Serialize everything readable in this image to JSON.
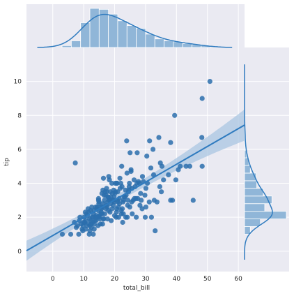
{
  "chart_data": {
    "type": "scatter",
    "style": "seaborn darkgrid jointplot with regression line, confidence band, marginal histograms and KDE",
    "xlabel": "total_bill",
    "ylabel": "tip",
    "xlim": [
      -8.5,
      62
    ],
    "ylim": [
      -1.2,
      12
    ],
    "x_ticks": [
      0,
      10,
      20,
      30,
      40,
      50,
      60
    ],
    "y_ticks": [
      0,
      2,
      4,
      6,
      8,
      10
    ],
    "grid": true,
    "colors": {
      "point": "#2b6fad",
      "line": "#2f7bbf",
      "band": "#a9c6e2",
      "hist": "#90b6d8",
      "background": "#eaeaf2",
      "grid": "#ffffff"
    },
    "regression": {
      "slope": 0.105,
      "intercept": 0.92
    },
    "series": [
      {
        "points": [
          [
            10.3,
            1.7
          ],
          [
            21.0,
            3.5
          ],
          [
            23.7,
            3.3
          ],
          [
            24.6,
            3.6
          ],
          [
            25.3,
            4.7
          ],
          [
            8.8,
            2.0
          ],
          [
            26.9,
            3.1
          ],
          [
            15.0,
            2.0
          ],
          [
            14.8,
            3.1
          ],
          [
            10.3,
            1.7
          ],
          [
            35.3,
            5.0
          ],
          [
            15.4,
            1.6
          ],
          [
            18.4,
            3.0
          ],
          [
            14.8,
            3.0
          ],
          [
            22.2,
            2.2
          ],
          [
            17.9,
            3.2
          ],
          [
            19.5,
            3.0
          ],
          [
            20.7,
            2.5
          ],
          [
            17.8,
            3.2
          ],
          [
            24.1,
            2.0
          ],
          [
            16.0,
            2.6
          ],
          [
            16.3,
            1.9
          ],
          [
            16.6,
            3.3
          ],
          [
            20.2,
            4.0
          ],
          [
            16.9,
            3.5
          ],
          [
            31.3,
            6.5
          ],
          [
            7.3,
            5.2
          ],
          [
            24.3,
            3.0
          ],
          [
            19.8,
            3.2
          ],
          [
            27.2,
            4.0
          ],
          [
            12.0,
            1.5
          ],
          [
            13.4,
            1.6
          ],
          [
            25.3,
            4.8
          ],
          [
            11.6,
            2.3
          ],
          [
            13.8,
            2.0
          ],
          [
            14.2,
            2.5
          ],
          [
            15.5,
            2.6
          ],
          [
            22.8,
            2.2
          ],
          [
            18.3,
            3.0
          ],
          [
            17.5,
            3.5
          ],
          [
            11.2,
            2.1
          ],
          [
            10.7,
            1.8
          ],
          [
            12.5,
            1.4
          ],
          [
            14.3,
            2.6
          ],
          [
            17.3,
            2.7
          ],
          [
            13.0,
            2.0
          ],
          [
            19.4,
            3.0
          ],
          [
            25.6,
            3.7
          ],
          [
            22.0,
            4.0
          ],
          [
            20.3,
            3.5
          ],
          [
            8.6,
            1.8
          ],
          [
            12.7,
            2.0
          ],
          [
            34.8,
            5.2
          ],
          [
            16.0,
            2.2
          ],
          [
            18.8,
            3.2
          ],
          [
            20.7,
            4.0
          ],
          [
            21.7,
            4.3
          ],
          [
            24.5,
            3.5
          ],
          [
            30.1,
            3.7
          ],
          [
            34.6,
            3.8
          ],
          [
            10.1,
            2.0
          ],
          [
            11.0,
            1.5
          ],
          [
            15.7,
            2.3
          ],
          [
            18.2,
            3.1
          ],
          [
            19.2,
            2.5
          ],
          [
            20.9,
            3.0
          ],
          [
            22.7,
            2.9
          ],
          [
            23.3,
            3.2
          ],
          [
            26.4,
            3.1
          ],
          [
            28.4,
            3.4
          ],
          [
            9.5,
            1.3
          ],
          [
            12.2,
            2.4
          ],
          [
            13.6,
            1.8
          ],
          [
            15.1,
            2.1
          ],
          [
            16.3,
            2.8
          ],
          [
            17.1,
            3.3
          ],
          [
            18.7,
            2.8
          ],
          [
            20.1,
            3.4
          ],
          [
            21.5,
            3.1
          ],
          [
            22.4,
            3.8
          ],
          [
            16.5,
            1.9
          ],
          [
            14.0,
            1.8
          ],
          [
            12.9,
            1.7
          ],
          [
            11.9,
            1.9
          ],
          [
            10.9,
            2.2
          ],
          [
            13.2,
            2.2
          ],
          [
            14.7,
            2.4
          ],
          [
            15.8,
            2.5
          ],
          [
            17.8,
            2.9
          ],
          [
            19.9,
            2.9
          ],
          [
            24.7,
            3.8
          ],
          [
            27.7,
            4.1
          ],
          [
            29.0,
            4.4
          ],
          [
            31.7,
            4.9
          ],
          [
            32.4,
            6.0
          ],
          [
            38.1,
            6.4
          ],
          [
            39.4,
            8.0
          ],
          [
            40.6,
            4.8
          ],
          [
            44.3,
            5.0
          ],
          [
            48.3,
            9.0
          ],
          [
            50.8,
            10.0
          ],
          [
            48.2,
            6.7
          ],
          [
            48.3,
            5.0
          ],
          [
            45.4,
            3.0
          ],
          [
            43.1,
            5.0
          ],
          [
            41.2,
            5.0
          ],
          [
            38.1,
            3.0
          ],
          [
            38.7,
            3.0
          ],
          [
            34.3,
            6.7
          ],
          [
            32.8,
            3.0
          ],
          [
            30.4,
            5.6
          ],
          [
            29.9,
            2.0
          ],
          [
            28.9,
            2.5
          ],
          [
            28.2,
            2.7
          ],
          [
            27.3,
            5.8
          ],
          [
            26.6,
            3.8
          ],
          [
            25.7,
            2.2
          ],
          [
            25.0,
            5.8
          ],
          [
            23.9,
            6.5
          ],
          [
            23.1,
            3.2
          ],
          [
            22.5,
            2.5
          ],
          [
            21.6,
            2.8
          ],
          [
            20.6,
            2.3
          ],
          [
            19.7,
            3.6
          ],
          [
            18.6,
            3.5
          ],
          [
            17.6,
            2.6
          ],
          [
            16.7,
            3.0
          ],
          [
            15.9,
            3.4
          ],
          [
            15.0,
            2.9
          ],
          [
            14.1,
            2.1
          ],
          [
            13.3,
            2.4
          ],
          [
            12.4,
            1.6
          ],
          [
            11.6,
            1.6
          ],
          [
            10.6,
            1.3
          ],
          [
            9.7,
            1.2
          ],
          [
            8.4,
            1.0
          ],
          [
            7.6,
            1.4
          ],
          [
            7.0,
            1.7
          ],
          [
            5.8,
            1.0
          ],
          [
            3.1,
            1.0
          ],
          [
            14.9,
            2.8
          ],
          [
            16.2,
            3.6
          ],
          [
            17.4,
            3.7
          ],
          [
            18.3,
            4.2
          ],
          [
            19.1,
            4.0
          ],
          [
            20.5,
            2.0
          ],
          [
            21.2,
            2.6
          ],
          [
            22.9,
            3.0
          ],
          [
            23.6,
            2.0
          ],
          [
            24.9,
            2.6
          ],
          [
            26.0,
            3.0
          ],
          [
            27.0,
            2.0
          ],
          [
            28.6,
            3.0
          ],
          [
            29.3,
            4.1
          ],
          [
            30.1,
            2.6
          ],
          [
            31.9,
            2.0
          ],
          [
            33.7,
            2.9
          ],
          [
            35.8,
            4.2
          ],
          [
            37.4,
            4.5
          ],
          [
            39.8,
            4.2
          ],
          [
            12.6,
            2.6
          ],
          [
            13.9,
            2.6
          ],
          [
            15.2,
            1.9
          ],
          [
            16.8,
            2.2
          ],
          [
            18.0,
            2.4
          ],
          [
            19.6,
            2.7
          ],
          [
            21.0,
            2.9
          ],
          [
            22.1,
            2.4
          ],
          [
            23.5,
            3.6
          ],
          [
            24.0,
            4.6
          ],
          [
            11.4,
            2.5
          ],
          [
            10.5,
            2.3
          ],
          [
            9.8,
            1.5
          ],
          [
            12.0,
            1.2
          ],
          [
            13.4,
            1.3
          ],
          [
            14.6,
            1.5
          ],
          [
            16.1,
            1.6
          ],
          [
            17.7,
            1.9
          ],
          [
            18.9,
            1.8
          ],
          [
            20.0,
            2.1
          ],
          [
            21.3,
            2.0
          ],
          [
            22.6,
            1.7
          ],
          [
            24.2,
            2.7
          ],
          [
            25.5,
            2.9
          ],
          [
            27.5,
            3.1
          ],
          [
            29.8,
            3.3
          ],
          [
            31.2,
            2.9
          ],
          [
            33.1,
            1.2
          ],
          [
            13.1,
            1.0
          ],
          [
            11.8,
            1.0
          ],
          [
            8.0,
            1.5
          ],
          [
            9.2,
            1.6
          ],
          [
            10.0,
            1.7
          ],
          [
            12.3,
            1.8
          ],
          [
            14.4,
            2.0
          ],
          [
            15.6,
            2.2
          ],
          [
            17.2,
            2.5
          ],
          [
            18.5,
            2.3
          ],
          [
            19.3,
            3.4
          ],
          [
            21.8,
            3.7
          ],
          [
            16.4,
            4.3
          ],
          [
            18.1,
            4.4
          ],
          [
            20.8,
            4.0
          ],
          [
            22.3,
            5.0
          ],
          [
            24.8,
            4.0
          ],
          [
            26.3,
            4.2
          ],
          [
            28.0,
            4.0
          ],
          [
            30.6,
            4.0
          ],
          [
            32.6,
            4.5
          ],
          [
            35.1,
            3.5
          ]
        ]
      }
    ],
    "marginal_x_hist": {
      "bins": [
        3,
        6,
        9,
        12,
        15,
        18,
        21,
        24,
        27,
        30,
        33,
        36,
        39,
        42,
        45,
        48,
        51
      ],
      "counts": [
        2,
        7,
        26,
        41,
        40,
        35,
        28,
        23,
        20,
        14,
        9,
        7,
        6,
        4,
        3,
        2
      ]
    },
    "marginal_y_hist": {
      "bins": [
        1,
        1.45,
        1.9,
        2.35,
        2.8,
        3.25,
        3.7,
        4.15,
        4.6,
        5.05,
        5.5,
        5.95,
        6.4,
        6.85,
        7.3
      ],
      "counts": [
        8,
        22,
        58,
        28,
        38,
        26,
        17,
        16,
        8,
        6,
        3,
        1,
        1,
        1
      ]
    }
  }
}
